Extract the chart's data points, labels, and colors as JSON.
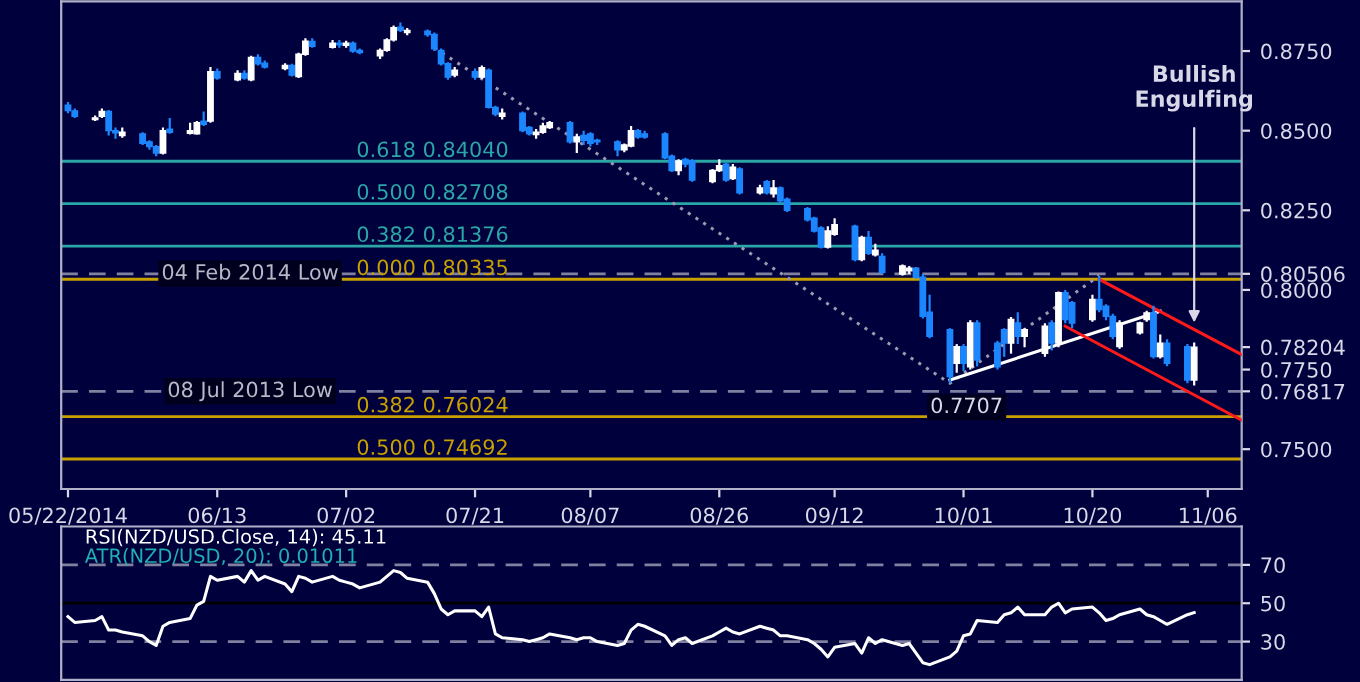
{
  "chart_data": [
    {
      "type": "candlestick",
      "x": [
        "2014-05-22",
        "2014-05-23",
        "2014-05-26",
        "2014-05-27",
        "2014-05-28",
        "2014-05-29",
        "2014-05-30",
        "2014-06-02",
        "2014-06-03",
        "2014-06-04",
        "2014-06-05",
        "2014-06-06",
        "2014-06-09",
        "2014-06-10",
        "2014-06-11",
        "2014-06-12",
        "2014-06-13",
        "2014-06-16",
        "2014-06-17",
        "2014-06-18",
        "2014-06-19",
        "2014-06-20",
        "2014-06-23",
        "2014-06-24",
        "2014-06-25",
        "2014-06-26",
        "2014-06-27",
        "2014-06-30",
        "2014-07-01",
        "2014-07-02",
        "2014-07-03",
        "2014-07-04",
        "2014-07-07",
        "2014-07-08",
        "2014-07-09",
        "2014-07-10",
        "2014-07-11",
        "2014-07-14",
        "2014-07-15",
        "2014-07-16",
        "2014-07-17",
        "2014-07-18",
        "2014-07-21",
        "2014-07-22",
        "2014-07-23",
        "2014-07-24",
        "2014-07-25",
        "2014-07-28",
        "2014-07-29",
        "2014-07-30",
        "2014-07-31",
        "2014-08-01",
        "2014-08-04",
        "2014-08-05",
        "2014-08-06",
        "2014-08-07",
        "2014-08-08",
        "2014-08-11",
        "2014-08-12",
        "2014-08-13",
        "2014-08-14",
        "2014-08-15",
        "2014-08-18",
        "2014-08-19",
        "2014-08-20",
        "2014-08-21",
        "2014-08-22",
        "2014-08-25",
        "2014-08-26",
        "2014-08-27",
        "2014-08-28",
        "2014-08-29",
        "2014-09-01",
        "2014-09-02",
        "2014-09-03",
        "2014-09-04",
        "2014-09-05",
        "2014-09-08",
        "2014-09-09",
        "2014-09-10",
        "2014-09-11",
        "2014-09-12",
        "2014-09-15",
        "2014-09-16",
        "2014-09-17",
        "2014-09-18",
        "2014-09-19",
        "2014-09-22",
        "2014-09-23",
        "2014-09-24",
        "2014-09-25",
        "2014-09-26",
        "2014-09-29",
        "2014-09-30",
        "2014-10-01",
        "2014-10-02",
        "2014-10-03",
        "2014-10-06",
        "2014-10-07",
        "2014-10-08",
        "2014-10-09",
        "2014-10-10",
        "2014-10-13",
        "2014-10-14",
        "2014-10-15",
        "2014-10-16",
        "2014-10-17",
        "2014-10-20",
        "2014-10-21",
        "2014-10-22",
        "2014-10-23",
        "2014-10-24",
        "2014-10-27",
        "2014-10-28",
        "2014-10-29",
        "2014-10-30",
        "2014-10-31",
        "2014-11-03",
        "2014-11-04"
      ],
      "ohlc": [
        [
          0.858,
          0.859,
          0.8555,
          0.8563
        ],
        [
          0.8562,
          0.857,
          0.854,
          0.8545
        ],
        [
          0.8535,
          0.8548,
          0.853,
          0.854
        ],
        [
          0.8545,
          0.857,
          0.854,
          0.856
        ],
        [
          0.856,
          0.8565,
          0.8485,
          0.85
        ],
        [
          0.85,
          0.851,
          0.8475,
          0.8493
        ],
        [
          0.8485,
          0.851,
          0.8478,
          0.8495
        ],
        [
          0.849,
          0.8495,
          0.8455,
          0.846
        ],
        [
          0.8465,
          0.847,
          0.844,
          0.845
        ],
        [
          0.845,
          0.8455,
          0.842,
          0.843
        ],
        [
          0.843,
          0.851,
          0.8425,
          0.85
        ],
        [
          0.8505,
          0.854,
          0.849,
          0.8495
        ],
        [
          0.8492,
          0.8525,
          0.8488,
          0.85
        ],
        [
          0.849,
          0.853,
          0.8488,
          0.8525
        ],
        [
          0.853,
          0.856,
          0.8515,
          0.852
        ],
        [
          0.853,
          0.87,
          0.8525,
          0.8685
        ],
        [
          0.8685,
          0.8695,
          0.866,
          0.8665
        ],
        [
          0.866,
          0.869,
          0.8655,
          0.868
        ],
        [
          0.868,
          0.869,
          0.866,
          0.8665
        ],
        [
          0.866,
          0.8735,
          0.8655,
          0.873
        ],
        [
          0.873,
          0.874,
          0.8705,
          0.871
        ],
        [
          0.8712,
          0.872,
          0.8695,
          0.87
        ],
        [
          0.8695,
          0.8712,
          0.869,
          0.8705
        ],
        [
          0.8705,
          0.871,
          0.867,
          0.8675
        ],
        [
          0.867,
          0.8745,
          0.8665,
          0.874
        ],
        [
          0.874,
          0.879,
          0.8735,
          0.8781
        ],
        [
          0.878,
          0.879,
          0.876,
          0.8765
        ],
        [
          0.8762,
          0.8785,
          0.8758,
          0.8775
        ],
        [
          0.8775,
          0.8785,
          0.876,
          0.877
        ],
        [
          0.8768,
          0.8782,
          0.876,
          0.8775
        ],
        [
          0.8775,
          0.878,
          0.8745,
          0.875
        ],
        [
          0.8752,
          0.8758,
          0.874,
          0.8745
        ],
        [
          0.8735,
          0.8758,
          0.8725,
          0.8752
        ],
        [
          0.8752,
          0.879,
          0.8748,
          0.8785
        ],
        [
          0.8785,
          0.883,
          0.878,
          0.8823
        ],
        [
          0.8825,
          0.884,
          0.881,
          0.8815
        ],
        [
          0.8808,
          0.8822,
          0.88,
          0.8815
        ],
        [
          0.8812,
          0.8818,
          0.8795,
          0.8802
        ],
        [
          0.8802,
          0.8808,
          0.875,
          0.8757
        ],
        [
          0.8752,
          0.8758,
          0.8705,
          0.871
        ],
        [
          0.871,
          0.8715,
          0.866,
          0.8668
        ],
        [
          0.8675,
          0.87,
          0.8668,
          0.869
        ],
        [
          0.8685,
          0.8695,
          0.866,
          0.8668
        ],
        [
          0.8668,
          0.8705,
          0.8663,
          0.8698
        ],
        [
          0.869,
          0.8695,
          0.857,
          0.8573
        ],
        [
          0.8573,
          0.8578,
          0.8545,
          0.8552
        ],
        [
          0.8545,
          0.857,
          0.8535,
          0.8555
        ],
        [
          0.8555,
          0.856,
          0.8495,
          0.85
        ],
        [
          0.851,
          0.8515,
          0.8485,
          0.849
        ],
        [
          0.8488,
          0.8505,
          0.8475,
          0.8495
        ],
        [
          0.8495,
          0.8525,
          0.849,
          0.8515
        ],
        [
          0.851,
          0.853,
          0.8505,
          0.8525
        ],
        [
          0.8525,
          0.853,
          0.846,
          0.8465
        ],
        [
          0.8465,
          0.849,
          0.843,
          0.848
        ],
        [
          0.8485,
          0.85,
          0.8455,
          0.847
        ],
        [
          0.849,
          0.8495,
          0.845,
          0.846
        ],
        [
          0.847,
          0.8475,
          0.8455,
          0.8465
        ],
        [
          0.8465,
          0.847,
          0.842,
          0.844
        ],
        [
          0.844,
          0.846,
          0.8432,
          0.8455
        ],
        [
          0.8452,
          0.8515,
          0.8448,
          0.85
        ],
        [
          0.85,
          0.8505,
          0.8475,
          0.848
        ],
        [
          0.849,
          0.85,
          0.8475,
          0.848
        ],
        [
          0.849,
          0.8495,
          0.841,
          0.8415
        ],
        [
          0.842,
          0.8425,
          0.837,
          0.8375
        ],
        [
          0.8375,
          0.841,
          0.836,
          0.8405
        ],
        [
          0.841,
          0.8415,
          0.8385,
          0.8395
        ],
        [
          0.8405,
          0.841,
          0.834,
          0.8345
        ],
        [
          0.834,
          0.838,
          0.8335,
          0.8375
        ],
        [
          0.8375,
          0.841,
          0.837,
          0.839
        ],
        [
          0.8395,
          0.84,
          0.834,
          0.8345
        ],
        [
          0.835,
          0.8395,
          0.8345,
          0.8385
        ],
        [
          0.838,
          0.8385,
          0.83,
          0.8305
        ],
        [
          0.8305,
          0.833,
          0.83,
          0.832
        ],
        [
          0.834,
          0.8345,
          0.83,
          0.8305
        ],
        [
          0.8302,
          0.8345,
          0.829,
          0.832
        ],
        [
          0.832,
          0.8325,
          0.827,
          0.828
        ],
        [
          0.8285,
          0.829,
          0.8245,
          0.825
        ],
        [
          0.8255,
          0.826,
          0.8215,
          0.822
        ],
        [
          0.8225,
          0.823,
          0.818,
          0.8185
        ],
        [
          0.8195,
          0.82,
          0.813,
          0.8135
        ],
        [
          0.8135,
          0.82,
          0.813,
          0.8185
        ],
        [
          0.8175,
          0.8225,
          0.817,
          0.8205
        ],
        [
          0.82,
          0.8205,
          0.809,
          0.8095
        ],
        [
          0.8095,
          0.817,
          0.809,
          0.8165
        ],
        [
          0.8165,
          0.8185,
          0.811,
          0.8115
        ],
        [
          0.811,
          0.8145,
          0.8105,
          0.8125
        ],
        [
          0.8105,
          0.8115,
          0.805,
          0.8055
        ],
        [
          0.805,
          0.808,
          0.8045,
          0.8075
        ],
        [
          0.806,
          0.8075,
          0.805,
          0.8068
        ],
        [
          0.8068,
          0.8072,
          0.8035,
          0.804
        ],
        [
          0.804,
          0.805,
          0.791,
          0.7917
        ],
        [
          0.793,
          0.7985,
          0.7848,
          0.7854
        ],
        [
          0.7875,
          0.788,
          0.7707,
          0.7728
        ],
        [
          0.777,
          0.783,
          0.774,
          0.7822
        ],
        [
          0.7822,
          0.783,
          0.7745,
          0.777
        ],
        [
          0.7759,
          0.7905,
          0.775,
          0.7896
        ],
        [
          0.7896,
          0.7905,
          0.776,
          0.778
        ],
        [
          0.7833,
          0.784,
          0.775,
          0.7759
        ],
        [
          0.7875,
          0.788,
          0.779,
          0.7833
        ],
        [
          0.7833,
          0.7915,
          0.78,
          0.7907
        ],
        [
          0.7896,
          0.793,
          0.783,
          0.7854
        ],
        [
          0.7854,
          0.788,
          0.782,
          0.7875
        ],
        [
          0.7801,
          0.7895,
          0.779,
          0.7886
        ],
        [
          0.7896,
          0.7905,
          0.781,
          0.7833
        ],
        [
          0.7833,
          0.7995,
          0.782,
          0.7991
        ],
        [
          0.7991,
          0.8,
          0.7895,
          0.7907
        ],
        [
          0.796,
          0.7965,
          0.788,
          0.7896
        ],
        [
          0.7907,
          0.7985,
          0.79,
          0.797
        ],
        [
          0.797,
          0.8044,
          0.793,
          0.7938
        ],
        [
          0.7949,
          0.7955,
          0.7905,
          0.7917
        ],
        [
          0.7917,
          0.7925,
          0.7845,
          0.7854
        ],
        [
          0.7822,
          0.7905,
          0.7815,
          0.7896
        ],
        [
          0.7865,
          0.79,
          0.786,
          0.7896
        ],
        [
          0.7907,
          0.7935,
          0.79,
          0.7928
        ],
        [
          0.7928,
          0.795,
          0.7785,
          0.7791
        ],
        [
          0.7791,
          0.786,
          0.7785,
          0.7833
        ],
        [
          0.7833,
          0.7845,
          0.776,
          0.777
        ],
        [
          0.7822,
          0.783,
          0.7707,
          0.7717
        ],
        [
          0.7717,
          0.7835,
          0.77,
          0.78204
        ]
      ],
      "series": [
        {
          "type": "line",
          "x": [
            "2014-07-15",
            "2014-09-29",
            "2014-10-21"
          ],
          "values": [
            0.876,
            0.7707,
            0.8045
          ],
          "color": "#9a9ab0",
          "line_style": "dotted"
        },
        {
          "type": "line",
          "x": [
            "2014-09-29",
            "2014-10-30"
          ],
          "values": [
            0.7717,
            0.7933
          ],
          "color": "#ffffff",
          "line_style": "solid"
        },
        {
          "type": "line",
          "x": [
            "2014-10-21",
            "2014-11-11"
          ],
          "values": [
            0.8033,
            0.7797
          ],
          "color": "#ff1a1a",
          "line_style": "solid"
        },
        {
          "type": "line",
          "x": [
            "2014-10-16",
            "2014-11-11"
          ],
          "values": [
            0.7886,
            0.7591
          ],
          "color": "#ff1a1a",
          "line_style": "solid"
        }
      ],
      "xlim": [
        "2014-05-21",
        "2014-11-11"
      ],
      "xticks": [
        {
          "value": "2014-05-22",
          "label": "05/22/2014"
        },
        {
          "value": "2014-06-13",
          "label": "06/13"
        },
        {
          "value": "2014-07-02",
          "label": "07/02"
        },
        {
          "value": "2014-07-21",
          "label": "07/21"
        },
        {
          "value": "2014-08-07",
          "label": "08/07"
        },
        {
          "value": "2014-08-26",
          "label": "08/26"
        },
        {
          "value": "2014-09-12",
          "label": "09/12"
        },
        {
          "value": "2014-10-01",
          "label": "10/01"
        },
        {
          "value": "2014-10-20",
          "label": "10/20"
        },
        {
          "value": "2014-11-06",
          "label": "11/06"
        }
      ],
      "ylim": [
        0.7375,
        0.8906
      ],
      "yticks": [
        {
          "value": 0.875,
          "label": "0.8750"
        },
        {
          "value": 0.85,
          "label": "0.8500"
        },
        {
          "value": 0.825,
          "label": "0.8250"
        },
        {
          "value": 0.8,
          "label": "0.8000"
        },
        {
          "value": 0.775,
          "label": "0.7750"
        },
        {
          "value": 0.75,
          "label": "0.7500"
        },
        0.80506,
        0.78204,
        0.76817
      ],
      "ref_lines": [
        {
          "axis": "y",
          "value": 0.80506,
          "label": "04 Feb 2014 Low",
          "color": "#8080a0",
          "line_style": "dashed"
        },
        {
          "axis": "y",
          "value": 0.76817,
          "label": "08 Jul 2013 Low",
          "color": "#8080a0",
          "line_style": "dashed"
        },
        {
          "axis": "y",
          "value": 0.8404,
          "label": "0.618 0.84040",
          "color": "#2aa6a6",
          "line_style": "solid"
        },
        {
          "axis": "y",
          "value": 0.82708,
          "label": "0.500 0.82708",
          "color": "#2aa6a6",
          "line_style": "solid"
        },
        {
          "axis": "y",
          "value": 0.81376,
          "label": "0.382 0.81376",
          "color": "#2aa6a6",
          "line_style": "solid"
        },
        {
          "axis": "y",
          "value": 0.80335,
          "label": "0.000 0.80335",
          "color": "#c8a000",
          "line_style": "solid"
        },
        {
          "axis": "y",
          "value": 0.76024,
          "label": "0.382 0.76024",
          "color": "#c8a000",
          "line_style": "solid"
        },
        {
          "axis": "y",
          "value": 0.74692,
          "label": "0.500 0.74692",
          "color": "#c8a000",
          "line_style": "solid"
        }
      ],
      "annotations": [
        {
          "text": "Bullish\nEngulfing",
          "x": "2014-11-04",
          "y": 0.788
        },
        {
          "text": "0.7707",
          "x": "2014-09-29",
          "y": 0.7707
        }
      ]
    },
    {
      "type": "line",
      "x": [
        "2014-05-22",
        "2014-05-23",
        "2014-05-26",
        "2014-05-27",
        "2014-05-28",
        "2014-05-29",
        "2014-05-30",
        "2014-06-02",
        "2014-06-03",
        "2014-06-04",
        "2014-06-05",
        "2014-06-06",
        "2014-06-09",
        "2014-06-10",
        "2014-06-11",
        "2014-06-12",
        "2014-06-13",
        "2014-06-16",
        "2014-06-17",
        "2014-06-18",
        "2014-06-19",
        "2014-06-20",
        "2014-06-23",
        "2014-06-24",
        "2014-06-25",
        "2014-06-26",
        "2014-06-27",
        "2014-06-30",
        "2014-07-01",
        "2014-07-02",
        "2014-07-03",
        "2014-07-04",
        "2014-07-07",
        "2014-07-08",
        "2014-07-09",
        "2014-07-10",
        "2014-07-11",
        "2014-07-14",
        "2014-07-15",
        "2014-07-16",
        "2014-07-17",
        "2014-07-18",
        "2014-07-21",
        "2014-07-22",
        "2014-07-23",
        "2014-07-24",
        "2014-07-25",
        "2014-07-28",
        "2014-07-29",
        "2014-07-30",
        "2014-07-31",
        "2014-08-01",
        "2014-08-04",
        "2014-08-05",
        "2014-08-06",
        "2014-08-07",
        "2014-08-08",
        "2014-08-11",
        "2014-08-12",
        "2014-08-13",
        "2014-08-14",
        "2014-08-15",
        "2014-08-18",
        "2014-08-19",
        "2014-08-20",
        "2014-08-21",
        "2014-08-22",
        "2014-08-25",
        "2014-08-26",
        "2014-08-27",
        "2014-08-28",
        "2014-08-29",
        "2014-09-01",
        "2014-09-02",
        "2014-09-03",
        "2014-09-04",
        "2014-09-05",
        "2014-09-08",
        "2014-09-09",
        "2014-09-10",
        "2014-09-11",
        "2014-09-12",
        "2014-09-15",
        "2014-09-16",
        "2014-09-17",
        "2014-09-18",
        "2014-09-19",
        "2014-09-22",
        "2014-09-23",
        "2014-09-24",
        "2014-09-25",
        "2014-09-26",
        "2014-09-29",
        "2014-09-30",
        "2014-10-01",
        "2014-10-02",
        "2014-10-03",
        "2014-10-06",
        "2014-10-07",
        "2014-10-08",
        "2014-10-09",
        "2014-10-10",
        "2014-10-13",
        "2014-10-14",
        "2014-10-15",
        "2014-10-16",
        "2014-10-17",
        "2014-10-20",
        "2014-10-21",
        "2014-10-22",
        "2014-10-23",
        "2014-10-24",
        "2014-10-27",
        "2014-10-28",
        "2014-10-29",
        "2014-10-30",
        "2014-10-31",
        "2014-11-03",
        "2014-11-04"
      ],
      "series": [
        {
          "color": "#ffffff",
          "values": [
            43,
            40,
            41,
            43,
            36,
            36,
            35,
            33,
            30,
            28,
            38,
            40,
            42,
            49,
            51,
            64,
            62,
            64,
            61,
            67,
            62,
            64,
            60,
            56,
            64,
            63,
            61,
            64,
            62,
            61,
            60,
            58,
            61,
            64,
            67,
            66,
            63,
            61,
            55,
            47,
            44,
            46,
            46,
            43,
            48,
            34,
            32,
            31,
            30,
            31,
            32,
            34,
            32,
            31,
            32,
            32,
            30,
            28,
            29,
            36,
            39,
            38,
            33,
            28,
            31,
            32,
            29,
            33,
            35,
            37,
            35,
            34,
            38,
            37,
            36,
            33,
            33,
            31,
            29,
            26,
            22,
            27,
            29,
            24,
            32,
            29,
            31,
            28,
            29,
            24,
            19,
            18,
            22,
            25,
            33,
            34,
            41,
            40,
            44,
            45,
            48,
            44,
            44,
            48,
            50,
            45,
            47,
            48,
            45,
            41,
            42,
            44,
            47,
            44,
            43,
            41,
            39,
            44,
            45.11
          ]
        }
      ],
      "xlim": [
        "2014-05-21",
        "2014-11-11"
      ],
      "ylim": [
        10,
        90
      ],
      "yticks": [
        30,
        50,
        70
      ],
      "tick_labels": "y",
      "ref_lines": [
        {
          "axis": "y",
          "value": 70,
          "color": "#8080a0",
          "line_style": "dashed"
        },
        {
          "axis": "y",
          "value": 50,
          "color": "#000000",
          "line_style": "solid"
        },
        {
          "axis": "y",
          "value": 30,
          "color": "#8080a0",
          "line_style": "dashed"
        }
      ],
      "annotations": [
        "RSI(NZD/USD.Close, 14): 45.11",
        "ATR(NZD/USD, 20): 0.01011"
      ]
    }
  ]
}
